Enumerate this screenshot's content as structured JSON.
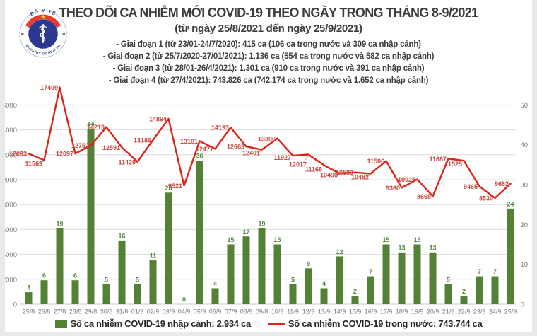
{
  "logo": {
    "top_text": "BỘ Y TẾ",
    "bottom_text": "MINISTRY OF HEALTH",
    "colors": {
      "navy": "#1f3c72",
      "blue": "#2b3990",
      "red": "#e8392f",
      "star_yellow": "#ffd615",
      "ring_stroke": "#c3c9d4"
    }
  },
  "header": {
    "title": "THEO DÕI CA NHIỄM MỚI COVID-19 THEO NGÀY TRONG THÁNG 8-9/2021",
    "subtitle": "(từ ngày 25/8/2021 đến ngày 25/9/2021)",
    "phases": [
      "- Giai đoạn 1 (từ 23/01-24/7/2020): 415 ca (106 ca trong nước và 309 ca nhập cảnh)",
      "- Giai đoạn 2 (từ 25/7/2020-27/01/2021): 1.136 ca (554 ca trong nước và 582 ca nhập cảnh)",
      "- Giai đoạn 3 (từ 28/01-26/4/2021): 1.301 ca (910 ca trong nước và 391 ca nhập cảnh)",
      "- Giai đoạn 4 (từ 27/4/2021): 743.826 ca (742.174 ca trong nước và 1.652 ca nhập cảnh)"
    ]
  },
  "chart_data": {
    "type": "bar-line-combo",
    "categories": [
      "25/8",
      "26/8",
      "27/8",
      "28/8",
      "29/8",
      "30/8",
      "31/8",
      "01/9",
      "02/9",
      "03/9",
      "04/9",
      "05/9",
      "06/9",
      "07/9",
      "08/9",
      "09/8",
      "10/9",
      "11/9",
      "12/9",
      "13/9",
      "14/9",
      "15/9",
      "16/9",
      "17/9",
      "18/9",
      "19/9",
      "20/9",
      "21/9",
      "22/9",
      "23/9",
      "24/9",
      "25/9"
    ],
    "series": [
      {
        "name": "Số ca nhiễm COVID-19 nhập cảnh",
        "type": "bar",
        "axis": "right",
        "color": "#538135",
        "label_color": "#4e8a3a",
        "values": [
          3,
          6,
          19,
          6,
          44,
          5,
          16,
          5,
          11,
          28,
          0,
          36,
          4,
          15,
          17,
          19,
          15,
          5,
          9,
          4,
          12,
          2,
          7,
          15,
          13,
          15,
          13,
          5,
          2,
          7,
          7,
          24
        ]
      },
      {
        "name": "Số ca nhiễm COVID-19 trong nước",
        "type": "line",
        "axis": "left",
        "color": "#e02317",
        "label_color": "#cb473e",
        "values": [
          12093,
          11569,
          17409,
          12097,
          12752,
          14219,
          12591,
          11429,
          13186,
          14894,
          9521,
          13101,
          12477,
          14193,
          12663,
          12401,
          13306,
          11927,
          12017,
          11168,
          10496,
          10583,
          10482,
          11506,
          9360,
          10025,
          8668,
          11687,
          11525,
          9465,
          8530,
          9682
        ]
      }
    ],
    "left_axis": {
      "min": 0,
      "max": 16000,
      "step": 2000
    },
    "right_axis": {
      "min": 0,
      "max": 50,
      "step": 10
    },
    "grid": true,
    "axis_label_color": "#7a7a7a",
    "grid_color": "#dcdcdc",
    "legend_position": "bottom"
  },
  "legend": {
    "imported": {
      "label": "Số ca nhiễm COVID-19 nhập cảnh: 2.934 ca",
      "color": "#538135",
      "swatch": "square"
    },
    "domestic": {
      "label": "Số ca nhiễm COVID-19 trong nước: 743.744 ca",
      "color": "#e02317",
      "swatch": "line"
    }
  }
}
